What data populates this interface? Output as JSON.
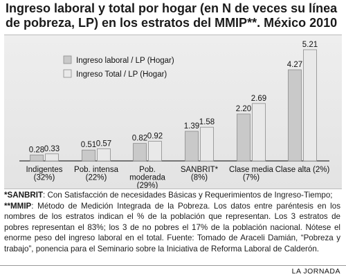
{
  "title": "Ingreso laboral y total por hogar (en N de veces su línea de pobreza, LP) en los estratos del MMIP**. México 2010",
  "chart_data": {
    "type": "bar",
    "title": "Ingreso laboral y total por hogar (en N de veces su línea de pobreza, LP) en los estratos del MMIP**. México 2010",
    "categories": [
      [
        "Indigentes",
        "(32%)"
      ],
      [
        "Pob. intensa",
        "(22%)"
      ],
      [
        "Pob.",
        "moderada",
        "(29%)"
      ],
      [
        "SANBRIT*",
        "(8%)"
      ],
      [
        "Clase media",
        "(7%)"
      ],
      [
        "Clase alta (2%)"
      ]
    ],
    "series": [
      {
        "name": "Ingreso laboral / LP (Hogar)",
        "values": [
          0.28,
          0.51,
          0.82,
          1.39,
          2.2,
          4.27
        ],
        "labels": [
          "0.28",
          "0.51",
          "0.82",
          "1.39",
          "2.20",
          "4.27"
        ]
      },
      {
        "name": "Ingreso Total / LP (Hogar)",
        "values": [
          0.33,
          0.57,
          0.92,
          1.58,
          2.69,
          5.21
        ],
        "labels": [
          "0.33",
          "0.57",
          "0.92",
          "1.58",
          "2.69",
          "5.21"
        ]
      }
    ],
    "ylim": [
      0,
      5.5
    ],
    "grid": false,
    "legend_position": "top-left",
    "colors": {
      "series1": "#c9c9c9",
      "series2": "#e9e9e9",
      "stroke": "#8a8a8a",
      "axis": "#333333"
    }
  },
  "notes": {
    "sanbrit_key": "*SANBRIT",
    "sanbrit_text": ": Con Satisfacción de necesidades Básicas y Requerimientos de Ingreso-Tiempo;",
    "mmip_key": "**MMIP",
    "mmip_text": ": Método de Medición Integrada de la Pobreza. Los datos entre paréntesis en los nombres de los estratos indican el % de la población que representan. Los 3 estratos de pobres representan el 83%; los 3 de no pobres el 17% de la población nacional. Nótese el enorme peso del ingreso laboral en el total. Fuente: Tomado de Araceli Damián, “Pobreza y trabajo”, ponencia para el Seminario sobre la Iniciativa de Reforma Laboral de Calderón."
  },
  "footer": {
    "brand": "LA JORNADA"
  }
}
